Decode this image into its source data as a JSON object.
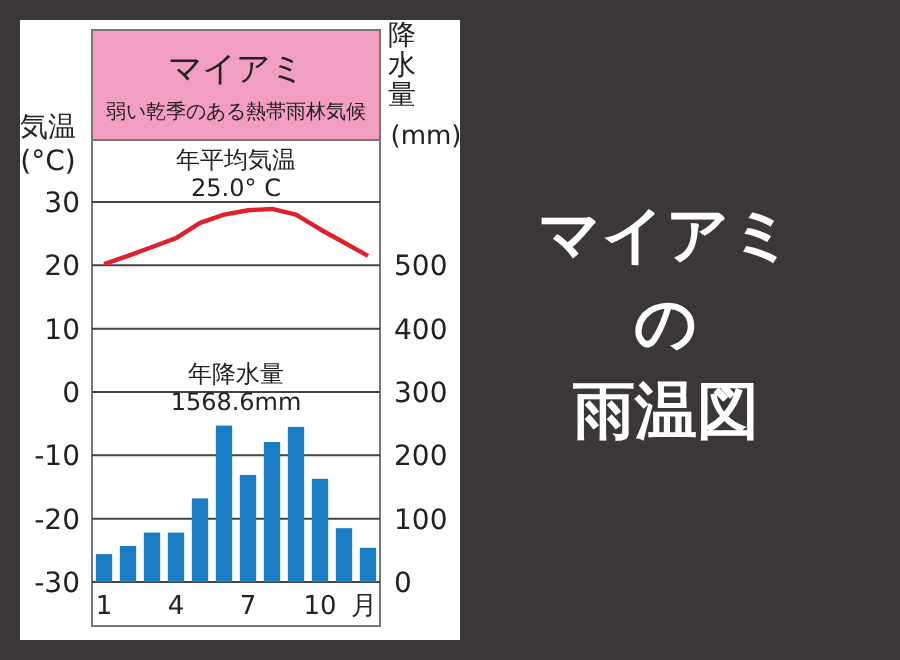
{
  "chart_data": {
    "type": "bar",
    "title": "マイアミ",
    "subtitle": "弱い乾季のある熱帯雨林気候",
    "ylabel": "気温\n(°C)",
    "y2label": "降水量\n(mm)",
    "xlabel": "月",
    "categories": [
      "1",
      null,
      null,
      "4",
      null,
      null,
      "7",
      null,
      null,
      "10",
      null,
      null
    ],
    "series": [
      {
        "name": null,
        "axis": "y2",
        "color": "#1a7dc4",
        "values": [
          44,
          57,
          78,
          78,
          132,
          247,
          169,
          221,
          245,
          163,
          85,
          54
        ]
      },
      {
        "name": null,
        "type": "line",
        "axis": "y",
        "color": "#e0202a",
        "values": [
          20.2,
          21.5,
          22.9,
          24.3,
          26.7,
          28.0,
          28.7,
          28.9,
          28.0,
          25.7,
          23.6,
          21.5
        ]
      }
    ],
    "ylim": [
      -30,
      30
    ],
    "yticks": [
      -30,
      -20,
      -10,
      0,
      10,
      20,
      30
    ],
    "y2lim": [
      0,
      600
    ],
    "y2ticks": [
      0,
      100,
      200,
      300,
      400,
      500
    ],
    "grid": "y",
    "marker": "none",
    "annotations": [
      "年平均気温\n25.0° C",
      "年降水量\n1568.6mm",
      "マイアミ",
      "の",
      "雨温図"
    ]
  }
}
